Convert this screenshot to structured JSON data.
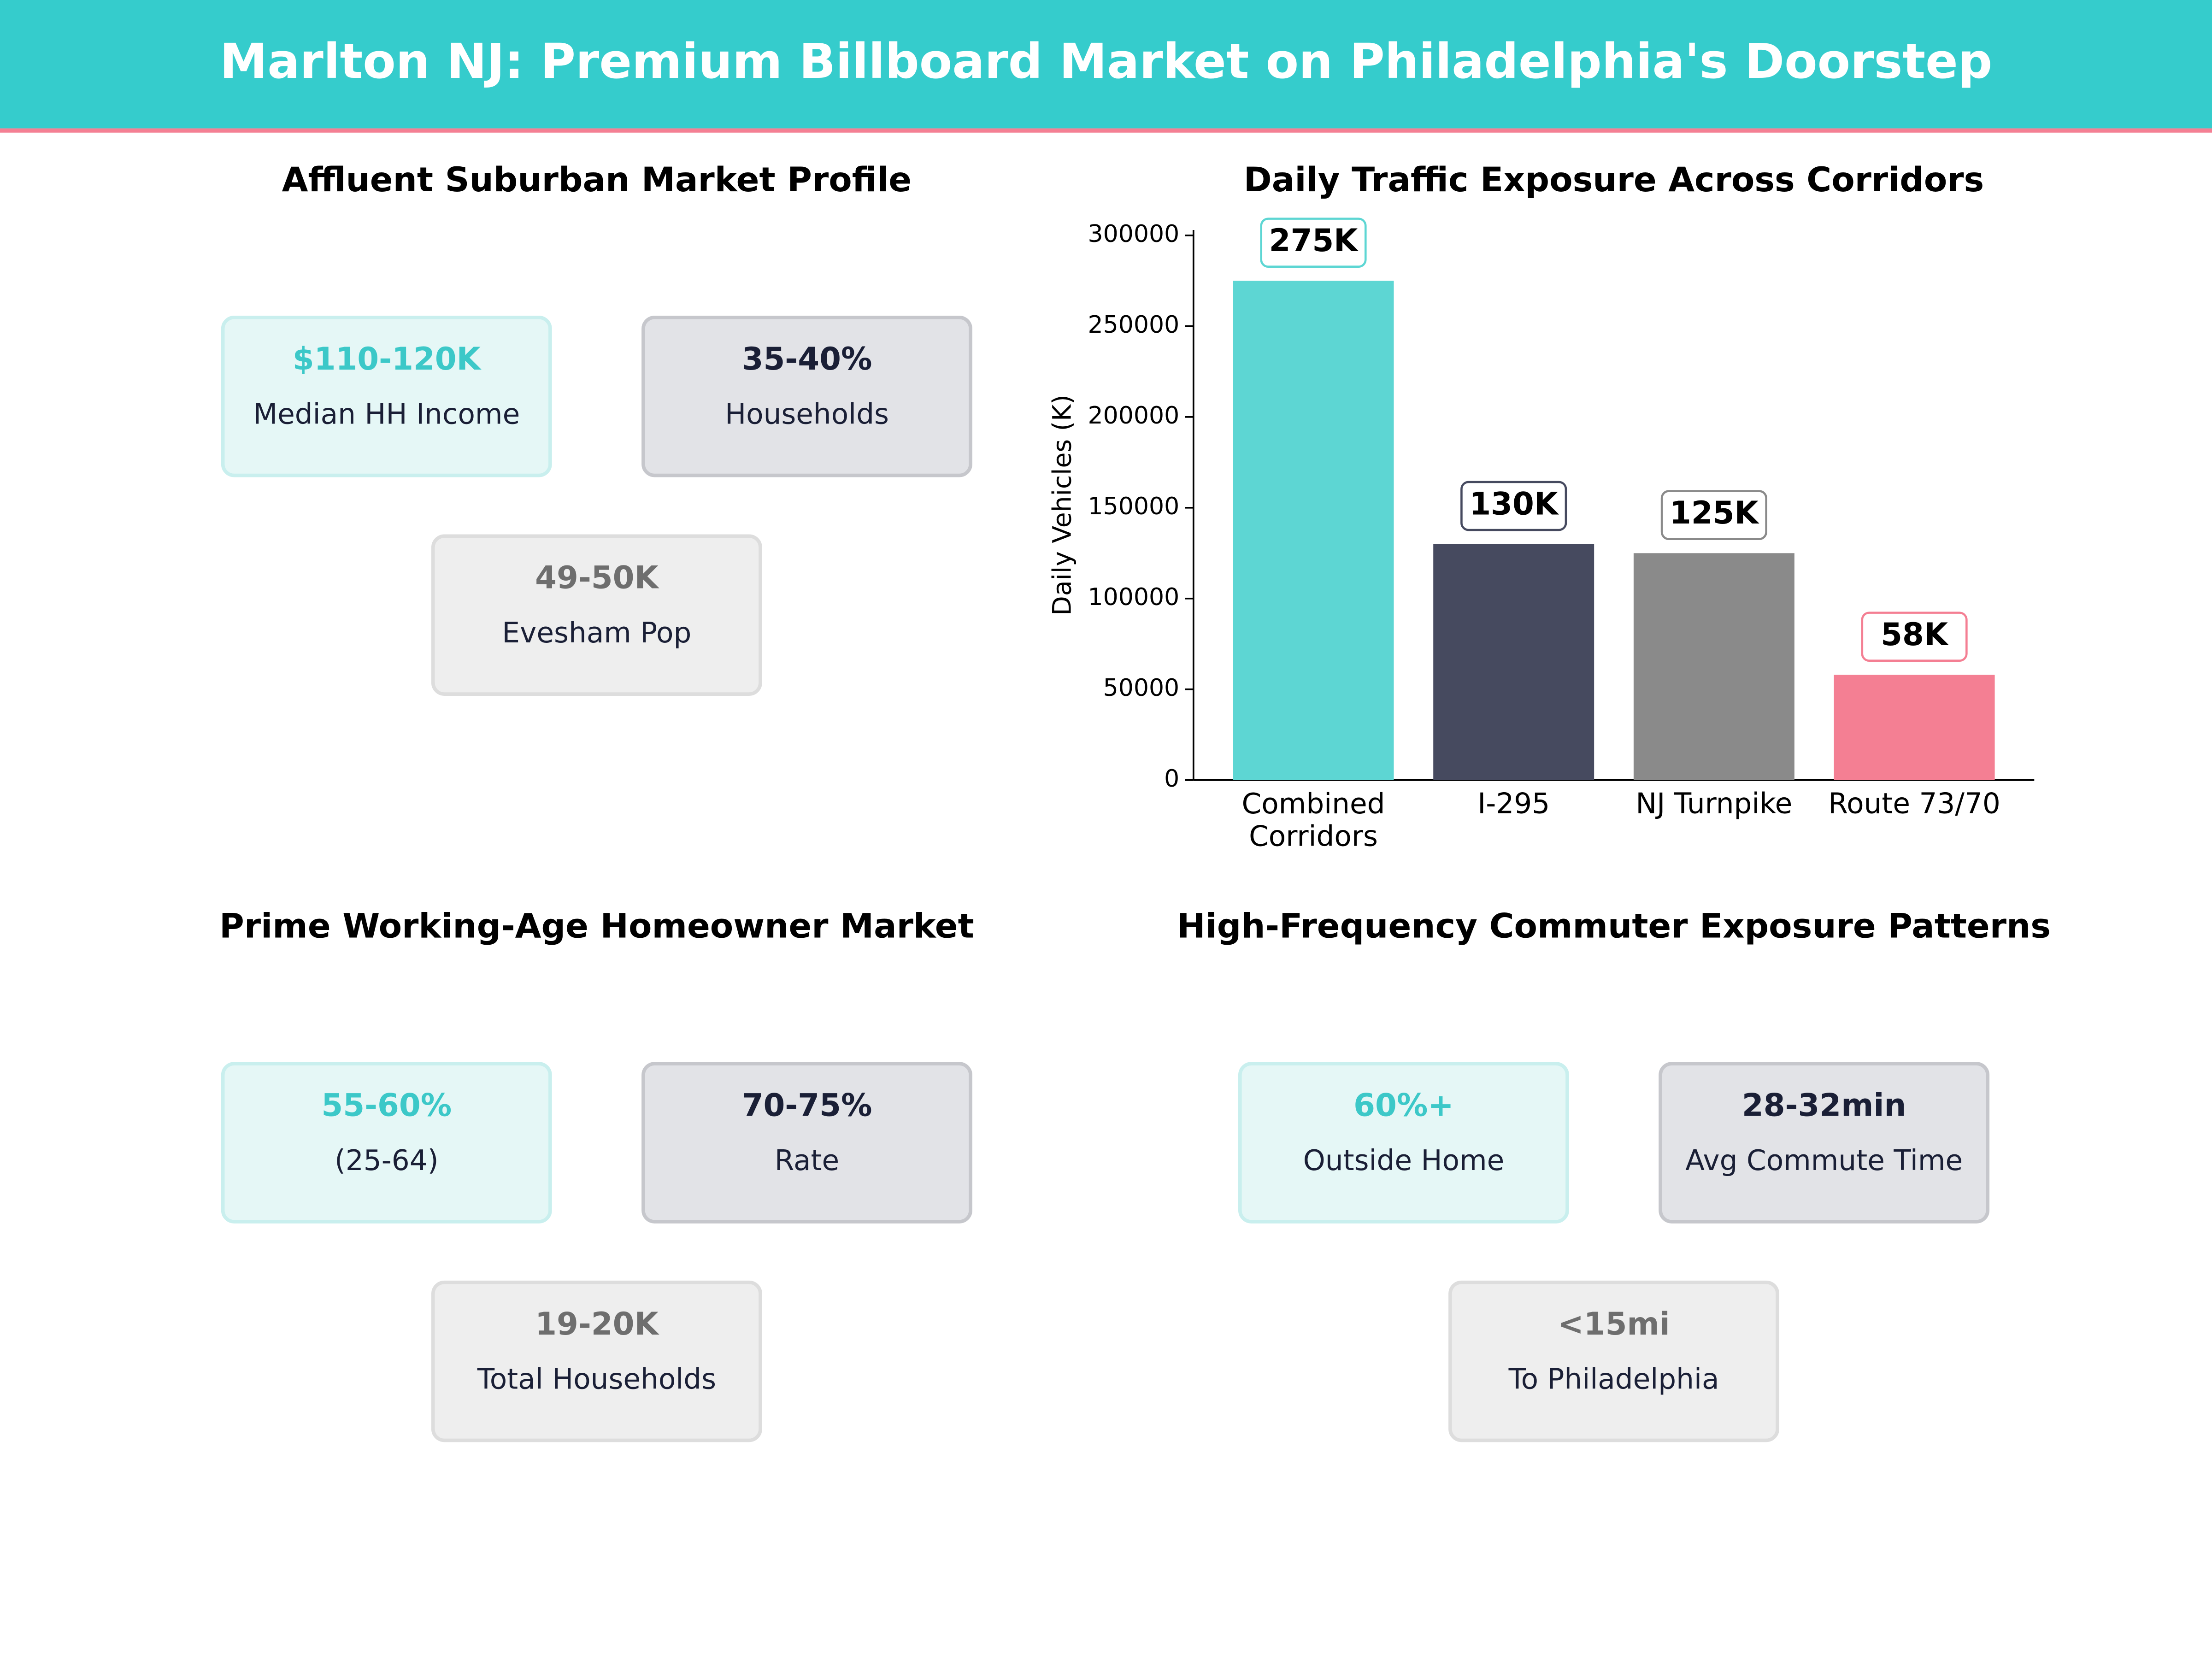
{
  "title": "Marlton NJ: Premium Billboard Market on Philadelphia's Doorstep",
  "panels": [
    {
      "title": "Affluent Suburban Market Profile",
      "cards": [
        {
          "value": "$110-120K",
          "label": "Median HH Income"
        },
        {
          "value": "35-40%",
          "label": "Households"
        },
        {
          "value": "49-50K",
          "label": "Evesham Pop"
        }
      ]
    },
    {
      "title": "Prime Working-Age Homeowner Market",
      "cards": [
        {
          "value": "55-60%",
          "label": "(25-64)"
        },
        {
          "value": "70-75%",
          "label": "Rate"
        },
        {
          "value": "19-20K",
          "label": "Total Households"
        }
      ]
    },
    {
      "title": "High-Frequency Commuter Exposure Patterns",
      "cards": [
        {
          "value": "60%+",
          "label": "Outside Home"
        },
        {
          "value": "28-32min",
          "label": "Avg Commute Time"
        },
        {
          "value": "<15mi",
          "label": "To Philadelphia"
        }
      ]
    }
  ],
  "chart_data": {
    "type": "bar",
    "title": "Daily Traffic Exposure Across Corridors",
    "y_label": "Daily Vehicles (K)",
    "categories": [
      "Combined Corridors",
      "I-295",
      "NJ Turnpike",
      "Route 73/70"
    ],
    "values": [
      275000,
      130000,
      125000,
      58000
    ],
    "value_labels": [
      "275K",
      "130K",
      "125K",
      "58K"
    ],
    "colors": [
      "#5dd6d3",
      "#464a5f",
      "#8a8a8a",
      "#f47f93"
    ],
    "ylim": [
      0,
      303000
    ],
    "yticks": [
      0,
      50000,
      100000,
      150000,
      200000,
      250000,
      300000
    ]
  }
}
